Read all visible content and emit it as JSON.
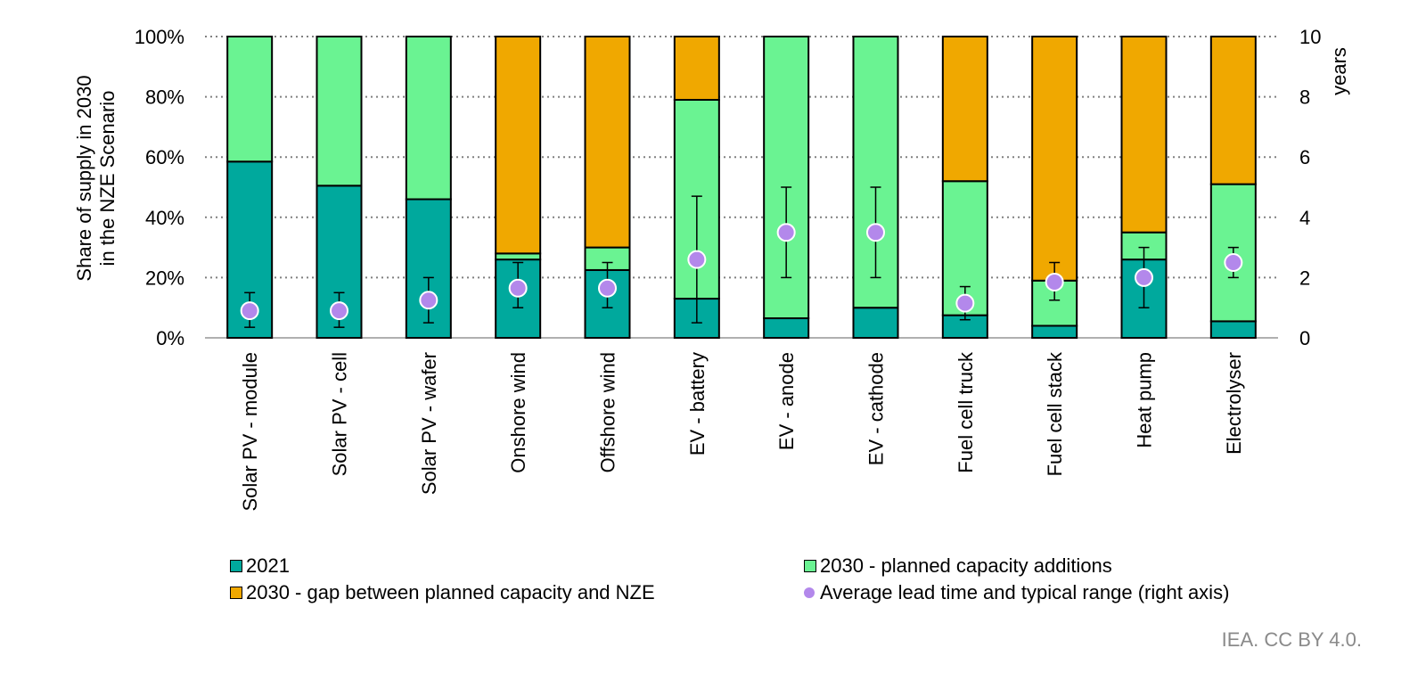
{
  "chart_data": {
    "type": "bar",
    "subtype": "stacked-bar-with-errorbar-dots",
    "title": "",
    "ylabel": "Share of supply in 2030\nin the NZE Scenario",
    "ylabel_lines": [
      "Share of supply in 2030",
      "in the NZE Scenario"
    ],
    "y2label": "years",
    "ylim": [
      0,
      100
    ],
    "y2lim": [
      0,
      10
    ],
    "yticks": [
      "0%",
      "20%",
      "40%",
      "60%",
      "80%",
      "100%"
    ],
    "y2ticks": [
      "0",
      "2",
      "4",
      "6",
      "8",
      "10"
    ],
    "grid": true,
    "categories": [
      "Solar PV - module",
      "Solar PV - cell",
      "Solar PV - wafer",
      "Onshore wind",
      "Offshore wind",
      "EV - battery",
      "EV - anode",
      "EV - cathode",
      "Fuel cell truck",
      "Fuel cell stack",
      "Heat pump",
      "Electrolyser"
    ],
    "series": [
      {
        "name": "2021",
        "color": "#00a99d",
        "values": [
          58.5,
          50.5,
          46,
          26,
          22.5,
          13,
          6.5,
          10,
          7.5,
          4,
          26,
          5.5
        ]
      },
      {
        "name": "2030 - planned capacity additions",
        "color": "#6af392",
        "values": [
          41.5,
          49.5,
          54,
          2,
          7.5,
          66,
          93.5,
          90,
          44.5,
          15,
          9,
          45.5
        ]
      },
      {
        "name": "2030 - gap between planned capacity and NZE",
        "color": "#f0a800",
        "values": [
          0,
          0,
          0,
          72,
          70,
          21,
          0,
          0,
          48,
          81,
          65,
          49
        ]
      }
    ],
    "lead_time": {
      "name": "Average lead time and typical range (right axis)",
      "color": "#b388eb",
      "axis": "right",
      "values": [
        0.9,
        0.9,
        1.25,
        1.65,
        1.65,
        2.6,
        3.5,
        3.5,
        1.15,
        1.85,
        2.0,
        2.5
      ],
      "low": [
        0.35,
        0.35,
        0.5,
        1.0,
        1.0,
        0.5,
        2.0,
        2.0,
        0.6,
        1.25,
        1.0,
        2.0
      ],
      "high": [
        1.5,
        1.5,
        2.0,
        2.5,
        2.5,
        4.7,
        5.0,
        5.0,
        1.7,
        2.5,
        3.0,
        3.0
      ]
    },
    "legend_position": "bottom"
  },
  "legend": {
    "items": [
      {
        "label": "2021",
        "color": "#00a99d",
        "shape": "square"
      },
      {
        "label": "2030 - planned capacity additions",
        "color": "#6af392",
        "shape": "square"
      },
      {
        "label": "2030 - gap between planned capacity and NZE",
        "color": "#f0a800",
        "shape": "square"
      },
      {
        "label": "Average lead time and typical range (right axis)",
        "color": "#b388eb",
        "shape": "circle"
      }
    ]
  },
  "credit": "IEA. CC BY 4.0."
}
